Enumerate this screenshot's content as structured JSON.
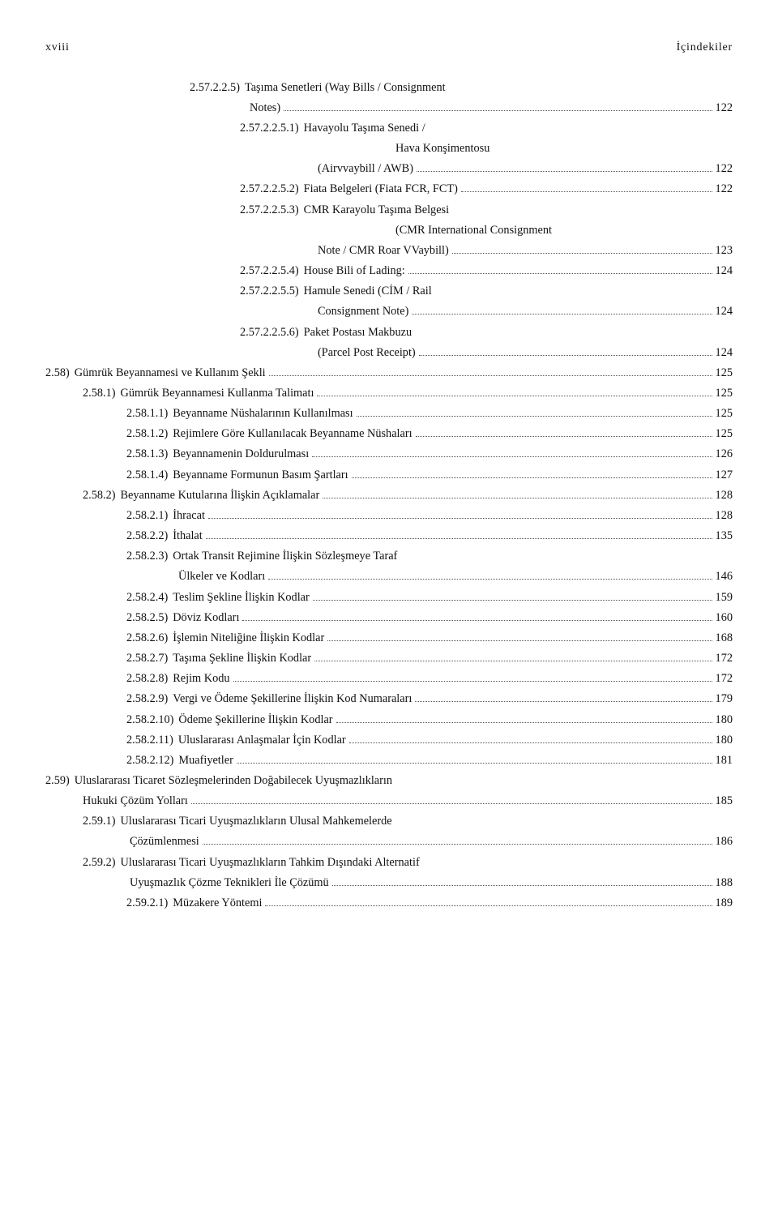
{
  "header": {
    "left": "xviii",
    "right": "İçindekiler"
  },
  "entries": [
    {
      "lvl": "l3",
      "num": "2.57.2.2.5)",
      "title_lines": [
        "Taşıma Senetleri (Way Bills / Consignment",
        "Notes)"
      ],
      "page": "122"
    },
    {
      "lvl": "l3b",
      "num": "2.57.2.2.5.1)",
      "title_lines": [
        "Havayolu Taşıma Senedi /",
        "Hava Konşimentosu",
        "(Airvvaybill / AWB)"
      ],
      "page": "122"
    },
    {
      "lvl": "l3b",
      "num": "2.57.2.2.5.2)",
      "title_lines": [
        "Fiata Belgeleri (Fiata FCR, FCT)"
      ],
      "page": "122"
    },
    {
      "lvl": "l3b",
      "num": "2.57.2.2.5.3)",
      "title_lines": [
        "CMR Karayolu Taşıma Belgesi",
        "(CMR International Consignment",
        "Note / CMR Roar VVaybill)"
      ],
      "page": "123"
    },
    {
      "lvl": "l3b",
      "num": "2.57.2.2.5.4)",
      "title_lines": [
        "House Bili of Lading:"
      ],
      "page": "124"
    },
    {
      "lvl": "l3b",
      "num": "2.57.2.2.5.5)",
      "title_lines": [
        "Hamule Senedi (CİM / Rail",
        "Consignment Note)"
      ],
      "page": "124"
    },
    {
      "lvl": "l3b",
      "num": "2.57.2.2.5.6)",
      "title_lines": [
        "Paket Postası Makbuzu",
        "(Parcel Post Receipt)"
      ],
      "page": "124"
    },
    {
      "lvl": "l0",
      "num": "2.58)",
      "title_lines": [
        "Gümrük Beyannamesi ve Kullanım Şekli"
      ],
      "page": "125"
    },
    {
      "lvl": "l1",
      "num": "2.58.1)",
      "title_lines": [
        "Gümrük Beyannamesi Kullanma Talimatı"
      ],
      "page": "125"
    },
    {
      "lvl": "l2",
      "num": "2.58.1.1)",
      "title_lines": [
        "Beyanname Nüshalarının Kullanılması"
      ],
      "page": "125"
    },
    {
      "lvl": "l2",
      "num": "2.58.1.2)",
      "title_lines": [
        "Rejimlere Göre Kullanılacak Beyanname Nüshaları"
      ],
      "page": "125"
    },
    {
      "lvl": "l2",
      "num": "2.58.1.3)",
      "title_lines": [
        "Beyannamenin Doldurulması"
      ],
      "page": "126"
    },
    {
      "lvl": "l2",
      "num": "2.58.1.4)",
      "title_lines": [
        "Beyanname Formunun Basım Şartları"
      ],
      "page": "127"
    },
    {
      "lvl": "l1",
      "num": "2.58.2)",
      "title_lines": [
        "Beyanname Kutularına İlişkin Açıklamalar"
      ],
      "page": "128"
    },
    {
      "lvl": "l2",
      "num": "2.58.2.1)",
      "title_lines": [
        "İhracat"
      ],
      "page": "128"
    },
    {
      "lvl": "l2",
      "num": "2.58.2.2)",
      "title_lines": [
        "İthalat"
      ],
      "page": "135"
    },
    {
      "lvl": "l2",
      "num": "2.58.2.3)",
      "title_lines": [
        "Ortak Transit Rejimine İlişkin Sözleşmeye Taraf",
        "Ülkeler ve Kodları"
      ],
      "page": "146"
    },
    {
      "lvl": "l2",
      "num": "2.58.2.4)",
      "title_lines": [
        "Teslim Şekline İlişkin Kodlar"
      ],
      "page": "159"
    },
    {
      "lvl": "l2",
      "num": "2.58.2.5)",
      "title_lines": [
        "Döviz Kodları"
      ],
      "page": "160"
    },
    {
      "lvl": "l2",
      "num": "2.58.2.6)",
      "title_lines": [
        "İşlemin Niteliğine İlişkin Kodlar"
      ],
      "page": "168"
    },
    {
      "lvl": "l2",
      "num": "2.58.2.7)",
      "title_lines": [
        "Taşıma Şekline İlişkin Kodlar"
      ],
      "page": "172"
    },
    {
      "lvl": "l2",
      "num": "2.58.2.8)",
      "title_lines": [
        "Rejim Kodu"
      ],
      "page": "172"
    },
    {
      "lvl": "l2",
      "num": "2.58.2.9)",
      "title_lines": [
        "Vergi ve Ödeme Şekillerine İlişkin Kod Numaraları"
      ],
      "page": "179"
    },
    {
      "lvl": "l2",
      "num": "2.58.2.10)",
      "title_lines": [
        "Ödeme Şekillerine İlişkin Kodlar"
      ],
      "page": "180"
    },
    {
      "lvl": "l2",
      "num": "2.58.2.11)",
      "title_lines": [
        "Uluslararası Anlaşmalar İçin Kodlar"
      ],
      "page": "180"
    },
    {
      "lvl": "l2",
      "num": "2.58.2.12)",
      "title_lines": [
        "Muafiyetler"
      ],
      "page": "181"
    },
    {
      "lvl": "l0",
      "num": "2.59)",
      "title_lines": [
        "Uluslararası Ticaret Sözleşmelerinden Doğabilecek Uyuşmazlıkların",
        "Hukuki Çözüm Yolları"
      ],
      "page": "185",
      "cont_lvl": "l0b"
    },
    {
      "lvl": "l1",
      "num": "2.59.1)",
      "title_lines": [
        "Uluslararası Ticari Uyuşmazlıkların Ulusal Mahkemelerde",
        "Çözümlenmesi"
      ],
      "page": "186"
    },
    {
      "lvl": "l1",
      "num": "2.59.2)",
      "title_lines": [
        "Uluslararası Ticari Uyuşmazlıkların Tahkim Dışındaki Alternatif",
        "Uyuşmazlık Çözme Teknikleri İle Çözümü"
      ],
      "page": "188"
    },
    {
      "lvl": "l2",
      "num": "2.59.2.1)",
      "title_lines": [
        "Müzakere Yöntemi"
      ],
      "page": "189"
    }
  ],
  "cont_indents": {
    "l0": 46,
    "l0b": 46,
    "l1": 104,
    "l2": 164,
    "l3": 252,
    "l3b": 336
  }
}
